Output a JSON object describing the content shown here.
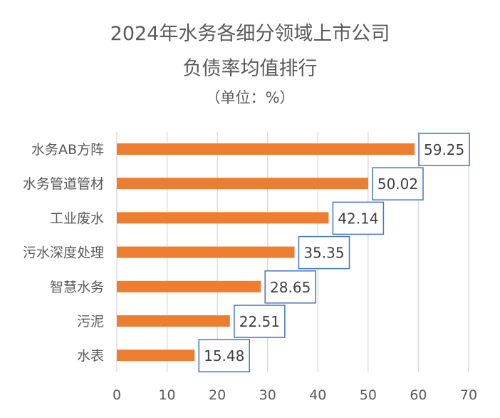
{
  "chart_data": {
    "type": "bar",
    "orientation": "horizontal",
    "title_lines": [
      "2024年水务各细分领域上市公司",
      "负债率均值排行"
    ],
    "subtitle": "（单位：%）",
    "categories": [
      "水务AB方阵",
      "水务管道管材",
      "工业废水",
      "污水深度处理",
      "智慧水务",
      "污泥",
      "水表"
    ],
    "values": [
      59.25,
      50.02,
      42.14,
      35.35,
      28.65,
      22.51,
      15.48
    ],
    "value_labels": [
      "59.25",
      "50.02",
      "42.14",
      "35.35",
      "28.65",
      "22.51",
      "15.48"
    ],
    "xlim": [
      0,
      70
    ],
    "x_ticks": [
      "0",
      "10",
      "20",
      "30",
      "40",
      "50",
      "60",
      "70"
    ],
    "grid": "vertical",
    "bar_color": "#ED7D31",
    "label_border_color": "#4472C4",
    "grid_color": "#D9D9D9"
  }
}
